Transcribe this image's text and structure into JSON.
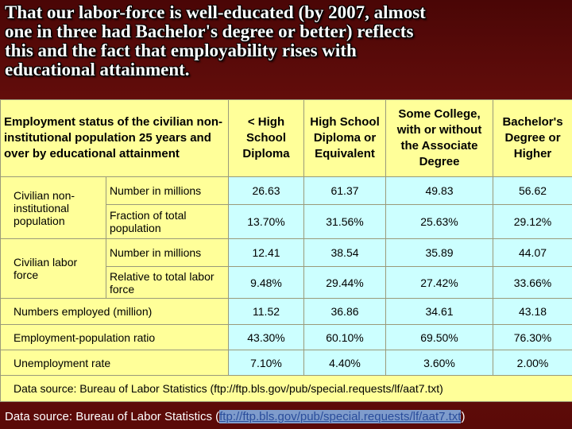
{
  "title_lines": [
    "That our labor-force is well-educated (by 2007, almost",
    "one in three had Bachelor's degree or better) reflects",
    "this and the fact that employability rises with",
    "educational attainment."
  ],
  "table": {
    "header": [
      "Employment status of the civilian non-institutional population 25 years and over by educational attainment",
      "< High School Diploma",
      "High School Diploma or Equivalent",
      "Some College, with or without the Associate Degree",
      "Bachelor's Degree or Higher"
    ],
    "groups": [
      "Civilian non-institutional population",
      "Civilian labor force"
    ],
    "rows": [
      [
        "Number in millions",
        "26.63",
        "61.37",
        "49.83",
        "56.62"
      ],
      [
        "Fraction of total population",
        "13.70%",
        "31.56%",
        "25.63%",
        "29.12%"
      ],
      [
        "Number in millions",
        "12.41",
        "38.54",
        "35.89",
        "44.07"
      ],
      [
        "Relative to total labor force",
        "9.48%",
        "29.44%",
        "27.42%",
        "33.66%"
      ],
      [
        "Numbers employed (million)",
        "11.52",
        "36.86",
        "34.61",
        "43.18"
      ],
      [
        "Employment-population ratio",
        "43.30%",
        "60.10%",
        "69.50%",
        "76.30%"
      ],
      [
        "Unemployment rate",
        "7.10%",
        "4.40%",
        "3.60%",
        "2.00%"
      ]
    ],
    "note": "Data source: Bureau of Labor Statistics (ftp://ftp.bls.gov/pub/special.requests/lf/aat7.txt)"
  },
  "source": {
    "text": "Data source: Bureau of Labor Statistics (",
    "link": "ftp://ftp.bls.gov/pub/special.requests/lf/aat7.txt",
    "close": ")"
  }
}
